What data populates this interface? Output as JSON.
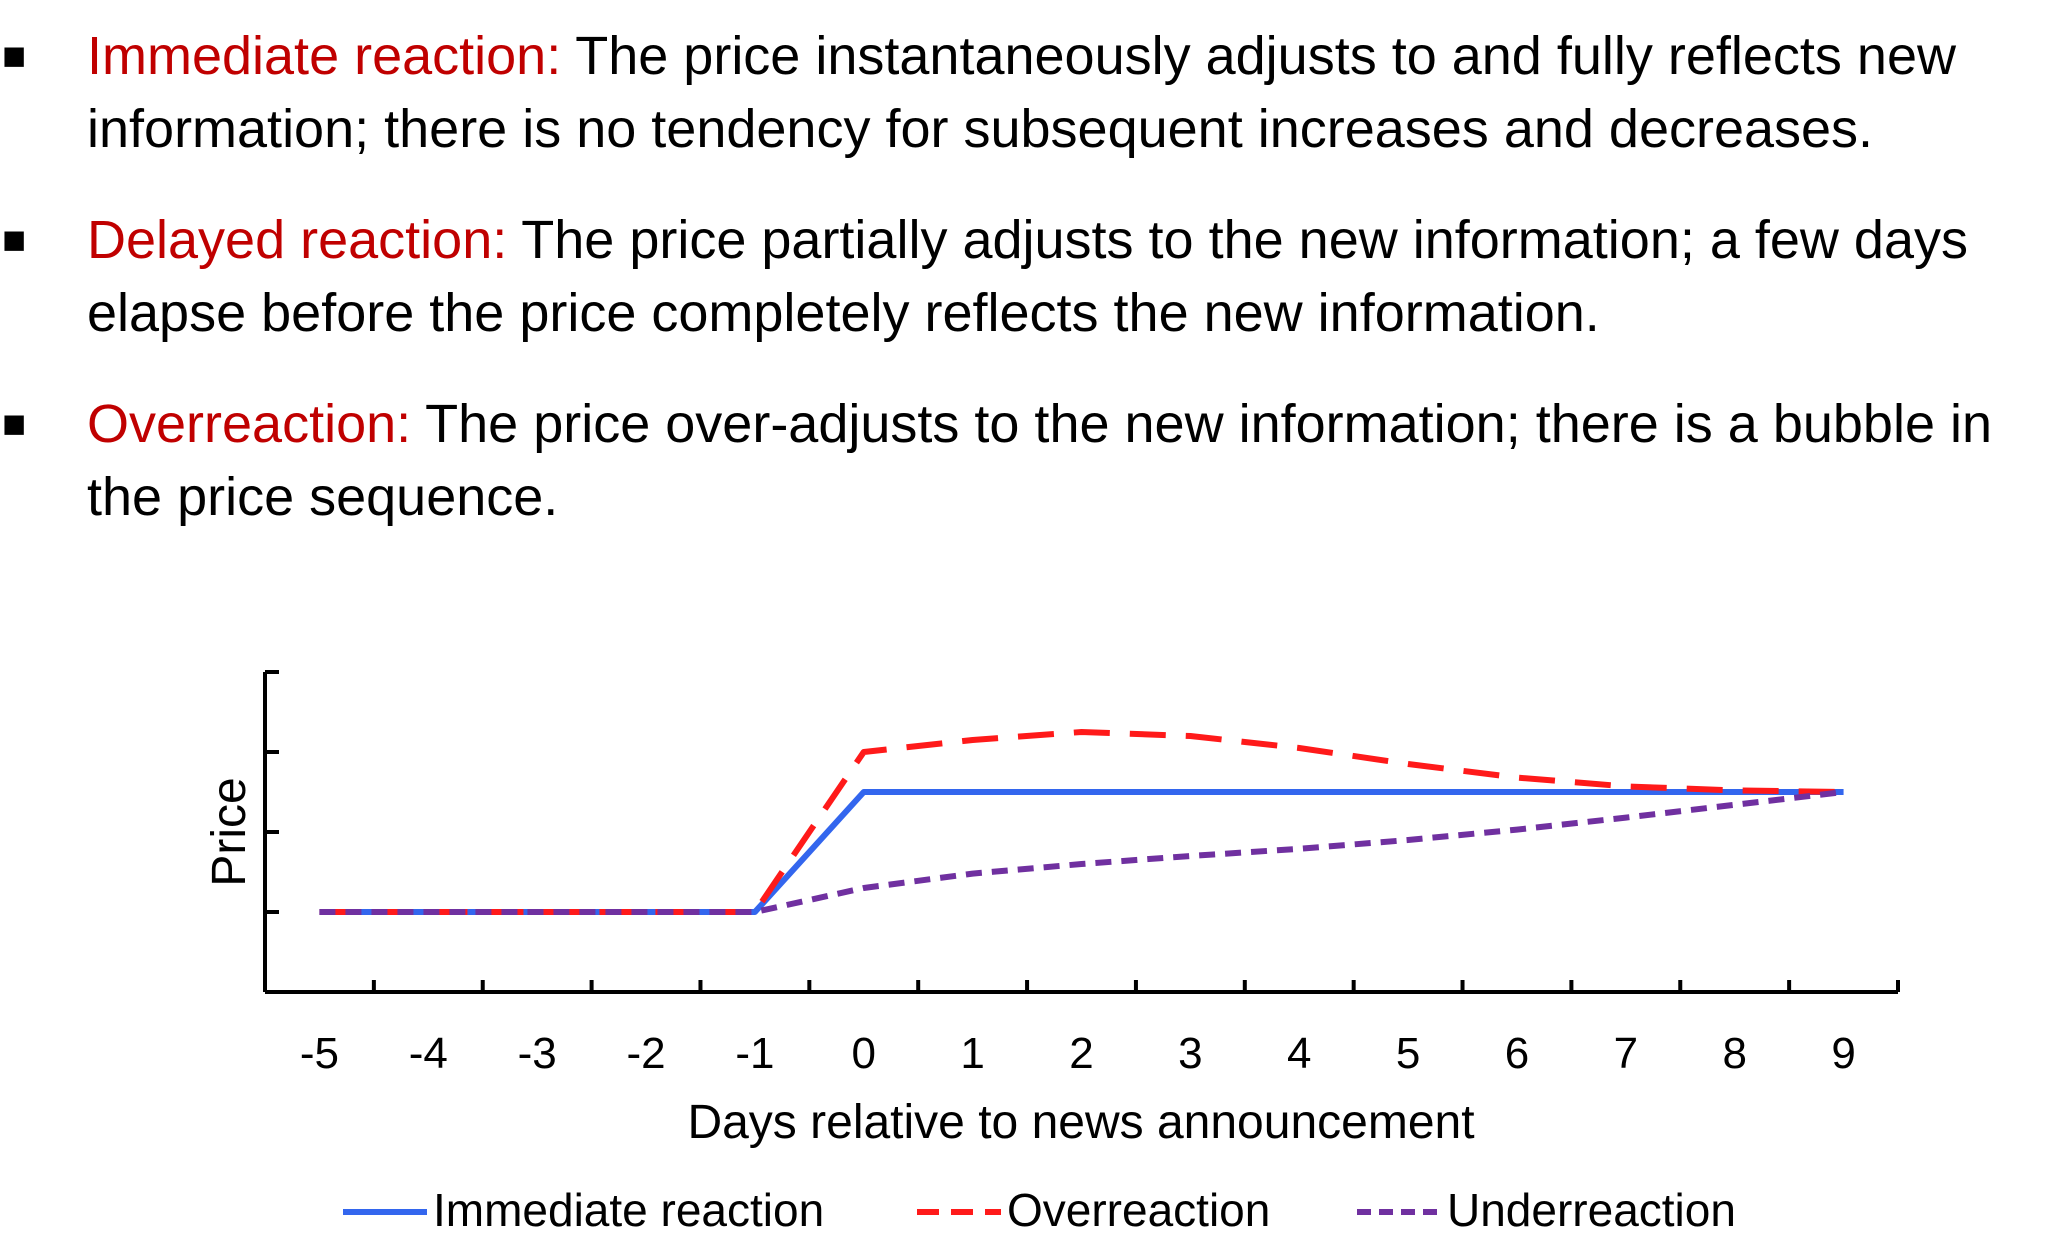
{
  "bullets": [
    {
      "marker": "■",
      "lead": "Immediate reaction:",
      "text": " The price instantaneously adjusts to and fully reflects new information; there is no tendency for subsequent increases and decreases."
    },
    {
      "marker": "■",
      "lead": "Delayed reaction:",
      "text": " The price partially adjusts to the new information; a few days elapse before the price completely reflects the new information."
    },
    {
      "marker": "■",
      "lead": "Overreaction:",
      "text": " The price over-adjusts to the new information; there is a bubble in the price sequence."
    }
  ],
  "chart_data": {
    "type": "line",
    "title": "",
    "xlabel": "Days relative to news announcement",
    "ylabel": "Price",
    "x": [
      -5,
      -4,
      -3,
      -2,
      -1,
      0,
      1,
      2,
      3,
      4,
      5,
      6,
      7,
      8,
      9
    ],
    "x_tick_labels": [
      "-5",
      "-4",
      "-3",
      "-2",
      "-1",
      "0",
      "1",
      "2",
      "3",
      "4",
      "5",
      "6",
      "7",
      "8",
      "9"
    ],
    "xlim": [
      -5.5,
      9.5
    ],
    "ylim": [
      0,
      4
    ],
    "y_ticks": [
      1,
      2,
      3,
      4
    ],
    "y_tick_labels_shown": false,
    "grid": false,
    "legend_position": "bottom",
    "series": [
      {
        "name": "Immediate reaction",
        "color": "#3366ee",
        "dash": "solid",
        "values": [
          1,
          1,
          1,
          1,
          1,
          2.5,
          2.5,
          2.5,
          2.5,
          2.5,
          2.5,
          2.5,
          2.5,
          2.5,
          2.5
        ]
      },
      {
        "name": "Overreaction",
        "color": "#ff1a1a",
        "dash": "dashed",
        "values": [
          1,
          1,
          1,
          1,
          1,
          3.0,
          3.15,
          3.25,
          3.2,
          3.05,
          2.85,
          2.68,
          2.57,
          2.52,
          2.5
        ]
      },
      {
        "name": "Underreaction",
        "color": "#7030a0",
        "dash": "dotted",
        "values": [
          1,
          1,
          1,
          1,
          1,
          1.3,
          1.48,
          1.6,
          1.7,
          1.79,
          1.9,
          2.03,
          2.18,
          2.34,
          2.5
        ]
      }
    ]
  }
}
